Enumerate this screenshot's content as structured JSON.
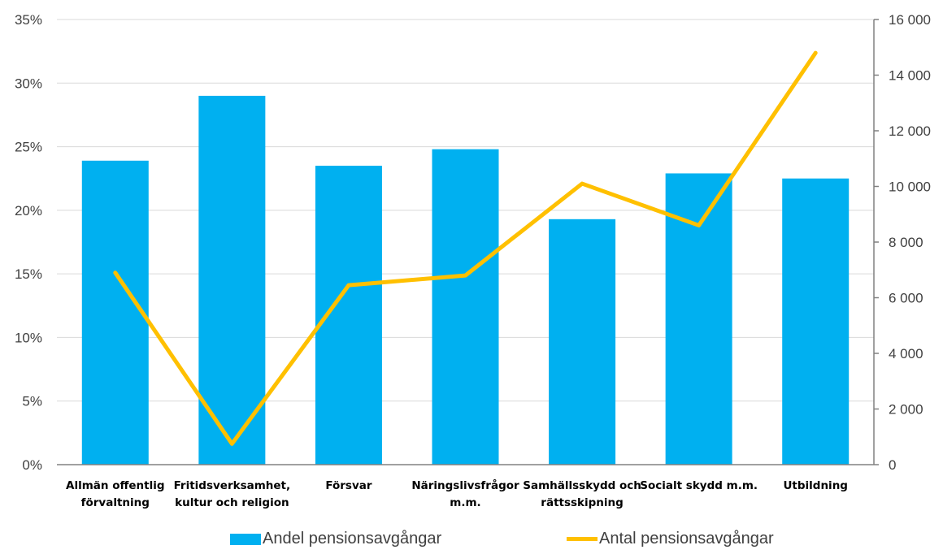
{
  "chart_data": {
    "type": "bar",
    "categories": [
      [
        "Allmän offentlig",
        "förvaltning"
      ],
      [
        "Fritidsverksamhet,",
        "kultur och religion"
      ],
      [
        "Försvar"
      ],
      [
        "Näringslivsfrågor",
        "m.m."
      ],
      [
        "Samhällsskydd och",
        "rättsskipning"
      ],
      [
        "Socialt skydd m.m."
      ],
      [
        "Utbildning"
      ]
    ],
    "series": [
      {
        "name": "Andel pensionsavgångar",
        "type": "bar",
        "axis": "left",
        "color": "#00B0F0",
        "values": [
          0.239,
          0.29,
          0.235,
          0.248,
          0.193,
          0.229,
          0.225
        ]
      },
      {
        "name": "Antal pensionsavgångar",
        "type": "line",
        "axis": "right",
        "color": "#FFC000",
        "values": [
          6900,
          750,
          6450,
          6800,
          10100,
          8600,
          14800
        ]
      }
    ],
    "y_left": {
      "ylim": [
        0,
        0.35
      ],
      "ticks": [
        0,
        0.05,
        0.1,
        0.15,
        0.2,
        0.25,
        0.3,
        0.35
      ],
      "tick_labels": [
        "0%",
        "5%",
        "10%",
        "15%",
        "20%",
        "25%",
        "30%",
        "35%"
      ]
    },
    "y_right": {
      "ylim": [
        0,
        16000
      ],
      "ticks": [
        0,
        2000,
        4000,
        6000,
        8000,
        10000,
        12000,
        14000,
        16000
      ],
      "tick_labels": [
        "0",
        "2 000",
        "4 000",
        "6 000",
        "8 000",
        "10 000",
        "12 000",
        "14 000",
        "16 000"
      ]
    },
    "grid": true,
    "legend_position": "bottom",
    "gridline_color": "#D9D9D9",
    "axis_color": "#808080"
  }
}
